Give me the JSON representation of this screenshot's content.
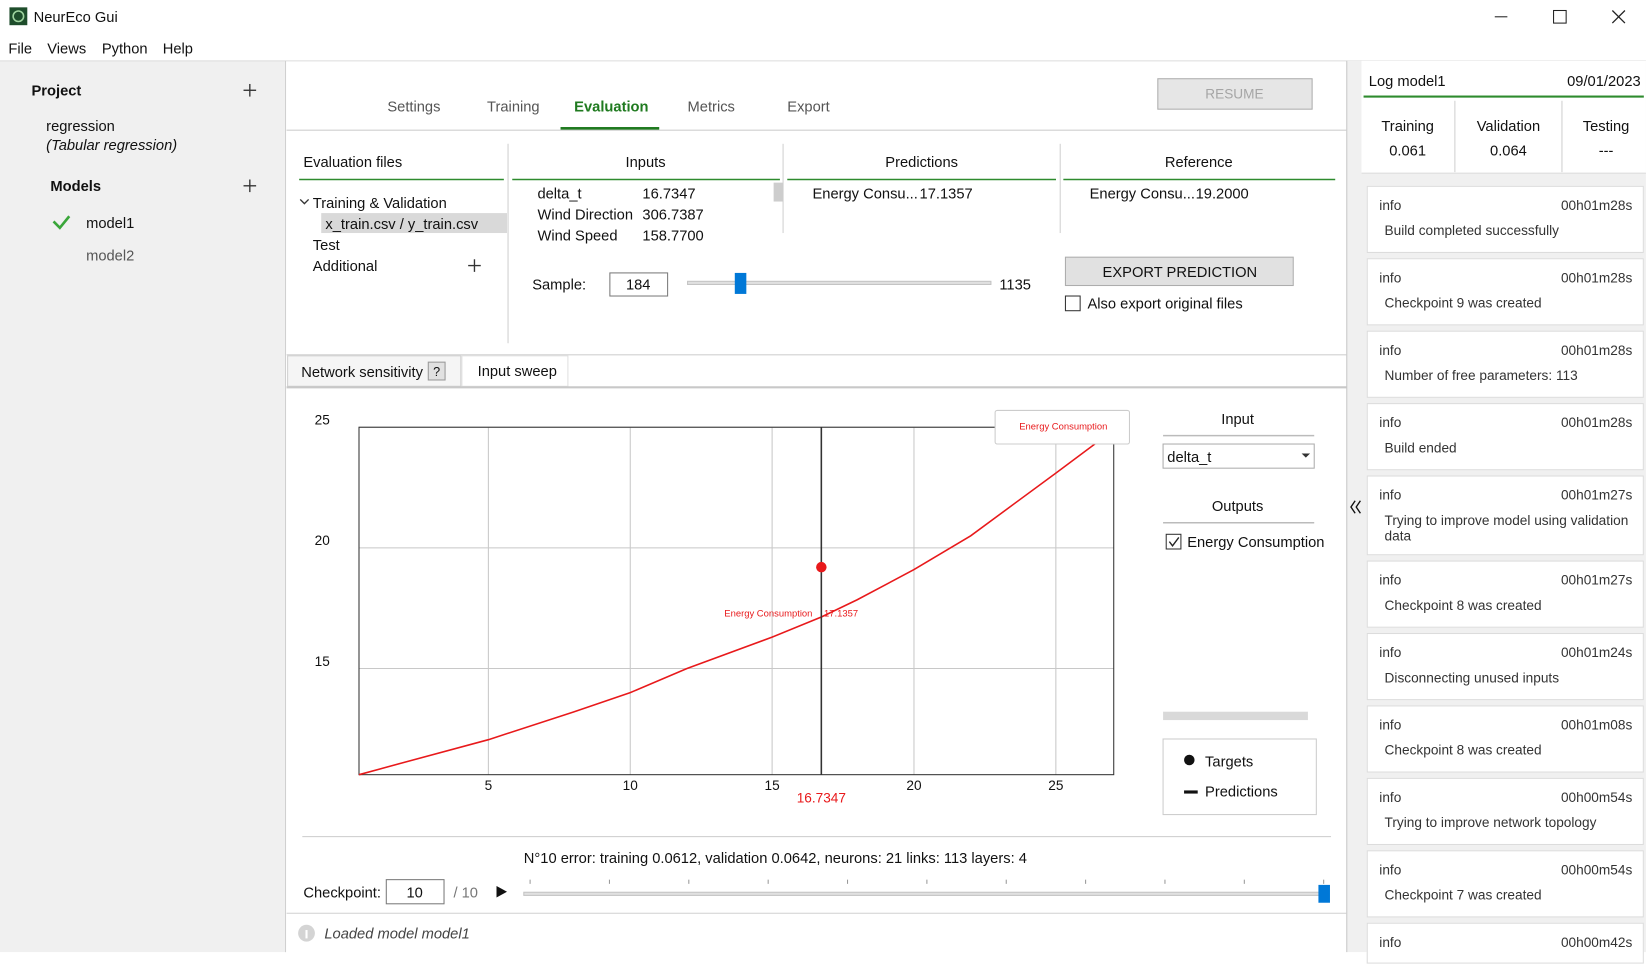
{
  "window": {
    "title": "NeurEco Gui"
  },
  "menu": [
    "File",
    "Views",
    "Python",
    "Help"
  ],
  "sidebar": {
    "project_label": "Project",
    "project_name": "regression",
    "project_type": "(Tabular regression)",
    "models_label": "Models",
    "models": [
      "model1",
      "model2"
    ]
  },
  "tabs": [
    "Settings",
    "Training",
    "Evaluation",
    "Metrics",
    "Export"
  ],
  "resume_button": "RESUME",
  "evaluation": {
    "files_header": "Evaluation files",
    "tree": [
      "Training & Validation",
      "x_train.csv / y_train.csv",
      "Test",
      "Additional"
    ],
    "inputs_header": "Inputs",
    "inputs": [
      [
        "delta_t",
        "16.7347"
      ],
      [
        "Wind Direction",
        "306.7387"
      ],
      [
        "Wind Speed",
        "158.7700"
      ]
    ],
    "predictions_header": "Predictions",
    "predictions": [
      [
        "Energy Consu...",
        "17.1357"
      ]
    ],
    "reference_header": "Reference",
    "reference": [
      [
        "Energy Consu...",
        "19.2000"
      ]
    ],
    "sample_label": "Sample:",
    "sample_value": "184",
    "sample_max": "1135",
    "export_button": "EXPORT PREDICTION",
    "export_original": "Also export original files"
  },
  "subtabs": [
    "Network sensitivity",
    "?",
    "Input sweep"
  ],
  "chart_data": {
    "type": "line",
    "x": [
      0.44,
      2,
      5,
      8,
      10,
      12,
      15,
      16.7347,
      18,
      20,
      22,
      25,
      26.6
    ],
    "series": [
      {
        "name": "Energy Consumption",
        "color": "#e8191b",
        "values": [
          10.6,
          11.1,
          12.05,
          13.2,
          14.0,
          15.0,
          16.3,
          17.1357,
          17.85,
          19.1,
          20.5,
          23.1,
          24.5
        ]
      }
    ],
    "xlim": [
      0.44,
      27.04
    ],
    "ylim": [
      10.6,
      25
    ],
    "xticks": [
      5,
      10,
      15,
      20,
      25
    ],
    "yticks": [
      15,
      20,
      25
    ],
    "grid": true,
    "cursor": 16.7347,
    "target": {
      "x": 16.7347,
      "y": 19.2
    },
    "annotation": {
      "text": "Energy Consumption",
      "value": 17.1357
    }
  },
  "sweep_panel": {
    "input_label": "Input",
    "input_value": "delta_t",
    "outputs_label": "Outputs",
    "output": "Energy Consumption",
    "legend": [
      "Targets",
      "Predictions"
    ]
  },
  "status_line": "N°10 error: training 0.0612, validation 0.0642,  neurons: 21  links: 113  layers: 4",
  "checkpoint": {
    "label": "Checkpoint:",
    "value": "10",
    "max": "/ 10"
  },
  "status_bar": "Loaded model model1",
  "log": {
    "title": "Log model1",
    "date": "09/01/2023",
    "metrics": [
      {
        "name": "Training",
        "value": "0.061"
      },
      {
        "name": "Validation",
        "value": "0.064"
      },
      {
        "name": "Testing",
        "value": "---"
      }
    ],
    "entries": [
      {
        "level": "info",
        "time": "00h01m28s",
        "message": "Build completed successfully"
      },
      {
        "level": "info",
        "time": "00h01m28s",
        "message": "Checkpoint 9 was created"
      },
      {
        "level": "info",
        "time": "00h01m28s",
        "message": "Number of free parameters: 113"
      },
      {
        "level": "info",
        "time": "00h01m28s",
        "message": "Build ended"
      },
      {
        "level": "info",
        "time": "00h01m27s",
        "message": "Trying to improve model using validation data"
      },
      {
        "level": "info",
        "time": "00h01m27s",
        "message": "Checkpoint 8 was created"
      },
      {
        "level": "info",
        "time": "00h01m24s",
        "message": "Disconnecting unused inputs"
      },
      {
        "level": "info",
        "time": "00h01m08s",
        "message": "Checkpoint 8 was created"
      },
      {
        "level": "info",
        "time": "00h00m54s",
        "message": "Trying to improve network topology"
      },
      {
        "level": "info",
        "time": "00h00m54s",
        "message": "Checkpoint 7 was created"
      },
      {
        "level": "info",
        "time": "00h00m42s"
      }
    ]
  }
}
